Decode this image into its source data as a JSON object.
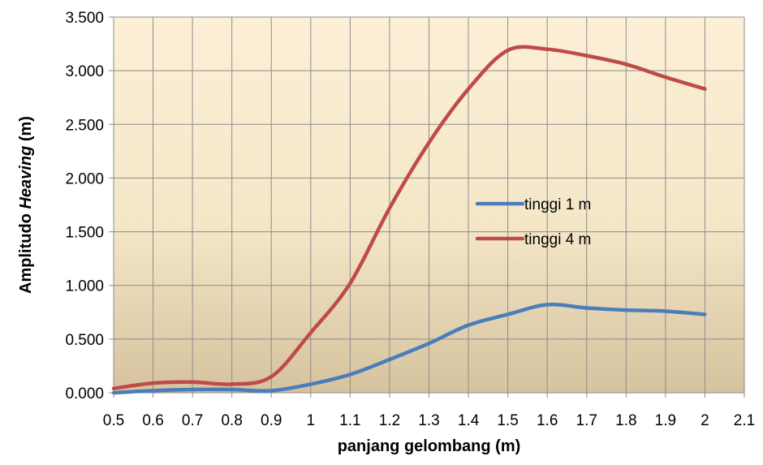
{
  "chart_data": {
    "type": "line",
    "title": "",
    "xlabel": "panjang gelombang (m)",
    "ylabel": {
      "prefix": "Amplitudo ",
      "italic": "Heaving",
      "suffix": " (m)"
    },
    "x_ticks": [
      "0.5",
      "0.6",
      "0.7",
      "0.8",
      "0.9",
      "1",
      "1.1",
      "1.2",
      "1.3",
      "1.4",
      "1.5",
      "1.6",
      "1.7",
      "1.8",
      "1.9",
      "2",
      "2.1"
    ],
    "y_ticks": [
      "0.000",
      "0.500",
      "1.000",
      "1.500",
      "2.000",
      "2.500",
      "3.000",
      "3.500"
    ],
    "xlim": [
      0.5,
      2.1
    ],
    "ylim": [
      0,
      3.5
    ],
    "grid": true,
    "legend_position": "center-right",
    "x": [
      0.5,
      0.6,
      0.7,
      0.8,
      0.9,
      1.0,
      1.1,
      1.2,
      1.3,
      1.4,
      1.5,
      1.6,
      1.7,
      1.8,
      1.9,
      2.0
    ],
    "series": [
      {
        "name": "tinggi 1 m",
        "color": "#4a7ebb",
        "values": [
          0.0,
          0.02,
          0.03,
          0.03,
          0.02,
          0.08,
          0.17,
          0.31,
          0.46,
          0.63,
          0.73,
          0.82,
          0.79,
          0.77,
          0.76,
          0.73
        ]
      },
      {
        "name": "tinggi 4 m",
        "color": "#be4b48",
        "values": [
          0.04,
          0.09,
          0.1,
          0.08,
          0.15,
          0.56,
          1.02,
          1.72,
          2.33,
          2.83,
          3.19,
          3.2,
          3.14,
          3.06,
          2.94,
          2.83
        ]
      }
    ]
  }
}
